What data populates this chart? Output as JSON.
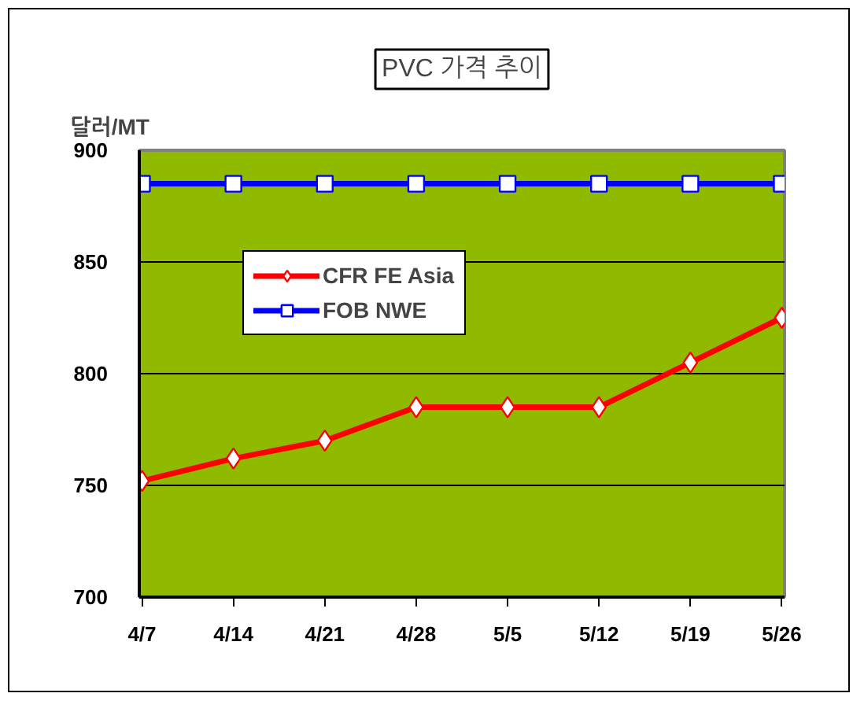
{
  "chart_data": {
    "type": "line",
    "title": "PVC 가격 추이",
    "ylabel": "달러/MT",
    "categories": [
      "4/7",
      "4/14",
      "4/21",
      "4/28",
      "5/5",
      "5/12",
      "5/19",
      "5/26"
    ],
    "series": [
      {
        "name": "CFR FE Asia",
        "color": "#ff0000",
        "marker": "diamond",
        "values": [
          752,
          762,
          770,
          785,
          785,
          785,
          805,
          825
        ]
      },
      {
        "name": "FOB NWE",
        "color": "#0000ff",
        "marker": "square",
        "values": [
          885,
          885,
          885,
          885,
          885,
          885,
          885,
          885
        ]
      }
    ],
    "ylim": [
      700,
      900
    ],
    "yticks": [
      700,
      750,
      800,
      850,
      900
    ],
    "grid": "y",
    "legend": "top left",
    "line_style": "solid"
  }
}
